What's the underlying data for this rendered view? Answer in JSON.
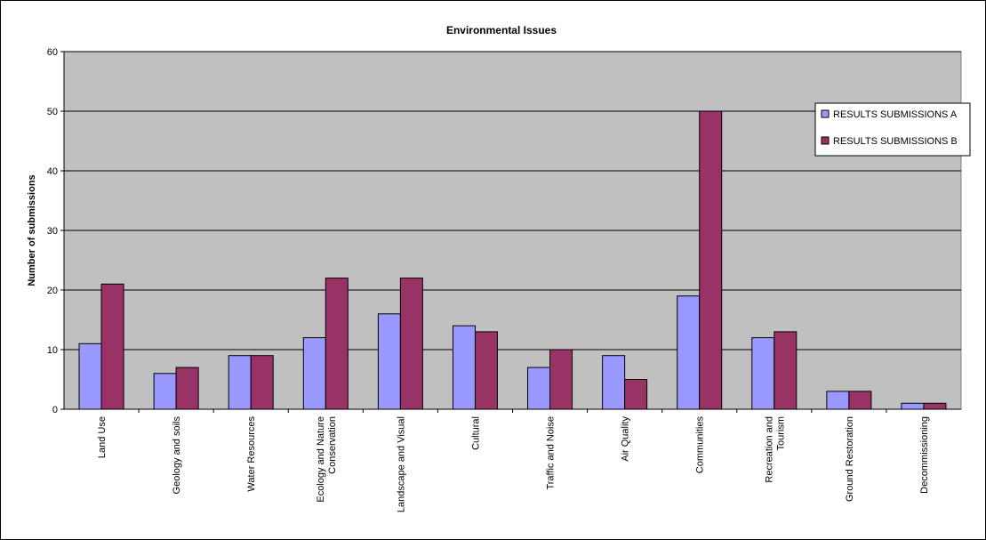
{
  "chart_data": {
    "type": "bar",
    "title": "Environmental Issues",
    "xlabel": "",
    "ylabel": "Number of submissions",
    "ylim": [
      0,
      60
    ],
    "yticks": [
      0,
      10,
      20,
      30,
      40,
      50,
      60
    ],
    "grid": true,
    "legend_position": "right",
    "categories": [
      [
        "Land Use"
      ],
      [
        "Geology and soils"
      ],
      [
        "Water Resources"
      ],
      [
        "Ecology and Nature",
        "Conservation"
      ],
      [
        "Landscape and Visual"
      ],
      [
        "Cultural"
      ],
      [
        "Traffic and Noise"
      ],
      [
        "Air Quality"
      ],
      [
        "Communities"
      ],
      [
        "Recreation and",
        "Tourism"
      ],
      [
        "Ground Restoration"
      ],
      [
        "Decommissioning"
      ]
    ],
    "series": [
      {
        "name": "RESULTS SUBMISSIONS A",
        "color": "#9999ff",
        "values": [
          11,
          6,
          9,
          12,
          16,
          14,
          7,
          9,
          19,
          12,
          3,
          1
        ]
      },
      {
        "name": "RESULTS SUBMISSIONS B",
        "color": "#993366",
        "values": [
          21,
          7,
          9,
          22,
          22,
          13,
          10,
          5,
          50,
          13,
          3,
          1
        ]
      }
    ],
    "plot_background": "#c0c0c0"
  }
}
